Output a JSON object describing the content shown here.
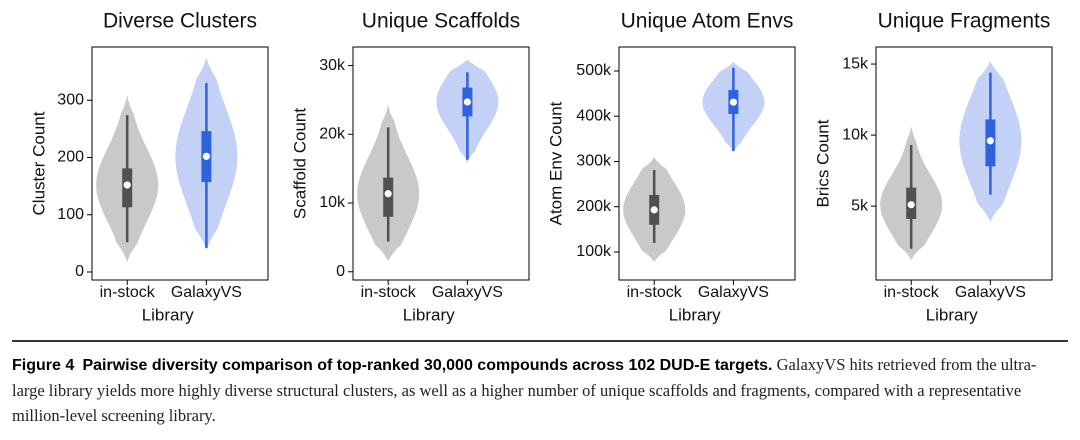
{
  "chart_data": [
    {
      "type": "violin",
      "title": "Diverse Clusters",
      "ylabel": "Cluster Count",
      "xlabel": "Library",
      "categories": [
        "in-stock",
        "GalaxyVS"
      ],
      "groups": [
        {
          "color": "#c9c9c9",
          "box_color": "#505050",
          "violin": [
            17,
            309
          ],
          "whisker": [
            52,
            274
          ],
          "box": [
            113,
            181
          ],
          "median": 152
        },
        {
          "color": "#c3d1f6",
          "box_color": "#2f62dd",
          "violin": [
            38,
            375
          ],
          "whisker": [
            42,
            330
          ],
          "box": [
            157,
            246
          ],
          "median": 202
        }
      ],
      "ylim": [
        -14,
        393
      ],
      "yticks": [
        0,
        100,
        200,
        300
      ]
    },
    {
      "type": "violin",
      "title": "Unique Scaffolds",
      "ylabel": "Scaffold Count",
      "xlabel": "Library",
      "categories": [
        "in-stock",
        "GalaxyVS"
      ],
      "groups": [
        {
          "color": "#c9c9c9",
          "box_color": "#505050",
          "violin": [
            1500,
            24300
          ],
          "whisker": [
            4400,
            21000
          ],
          "box": [
            8000,
            13700
          ],
          "median": 11350
        },
        {
          "color": "#c3d1f6",
          "box_color": "#2f62dd",
          "violin": [
            15900,
            30900
          ],
          "whisker": [
            16300,
            29000
          ],
          "box": [
            22600,
            26800
          ],
          "median": 24700
        }
      ],
      "ylim": [
        -1200,
        32700
      ],
      "yticks": [
        0,
        {
          "value": 10000,
          "label": "10k"
        },
        {
          "value": 20000,
          "label": "20k"
        },
        {
          "value": 30000,
          "label": "30k"
        }
      ]
    },
    {
      "type": "violin",
      "title": "Unique Atom Envs",
      "ylabel": "Atom Env Count",
      "xlabel": "Library",
      "categories": [
        "in-stock",
        "GalaxyVS"
      ],
      "groups": [
        {
          "color": "#c9c9c9",
          "box_color": "#505050",
          "violin": [
            78000,
            309000
          ],
          "whisker": [
            120000,
            281000
          ],
          "box": [
            160000,
            226000
          ],
          "median": 193000
        },
        {
          "color": "#c3d1f6",
          "box_color": "#2f62dd",
          "violin": [
            321000,
            520000
          ],
          "whisker": [
            323000,
            507000
          ],
          "box": [
            405000,
            458000
          ],
          "median": 431000
        }
      ],
      "ylim": [
        38000,
        553000
      ],
      "yticks": [
        {
          "value": 100000,
          "label": "100k"
        },
        {
          "value": 200000,
          "label": "200k"
        },
        {
          "value": 300000,
          "label": "300k"
        },
        {
          "value": 400000,
          "label": "400k"
        },
        {
          "value": 500000,
          "label": "500k"
        }
      ]
    },
    {
      "type": "violin",
      "title": "Unique Fragments",
      "ylabel": "Brics Count",
      "xlabel": "Library",
      "categories": [
        "in-stock",
        "GalaxyVS"
      ],
      "groups": [
        {
          "color": "#c9c9c9",
          "box_color": "#505050",
          "violin": [
            1200,
            10600
          ],
          "whisker": [
            2000,
            9300
          ],
          "box": [
            4100,
            6300
          ],
          "median": 5100
        },
        {
          "color": "#c3d1f6",
          "box_color": "#2f62dd",
          "violin": [
            3900,
            15200
          ],
          "whisker": [
            5800,
            14400
          ],
          "box": [
            7800,
            11100
          ],
          "median": 9600
        }
      ],
      "ylim": [
        -200,
        16200
      ],
      "yticks": [
        {
          "value": 5000,
          "label": "5k"
        },
        {
          "value": 10000,
          "label": "10k"
        },
        {
          "value": 15000,
          "label": "15k"
        }
      ]
    }
  ],
  "caption": {
    "label": "Figure 4",
    "title": "Pairwise diversity comparison of top-ranked 30,000 compounds across 102 DUD-E targets.",
    "text": "GalaxyVS hits retrieved from the ultra-large library yields more highly diverse structural clusters, as well as a higher number of unique scaffolds and fragments, compared with a representative million-level screening library."
  }
}
